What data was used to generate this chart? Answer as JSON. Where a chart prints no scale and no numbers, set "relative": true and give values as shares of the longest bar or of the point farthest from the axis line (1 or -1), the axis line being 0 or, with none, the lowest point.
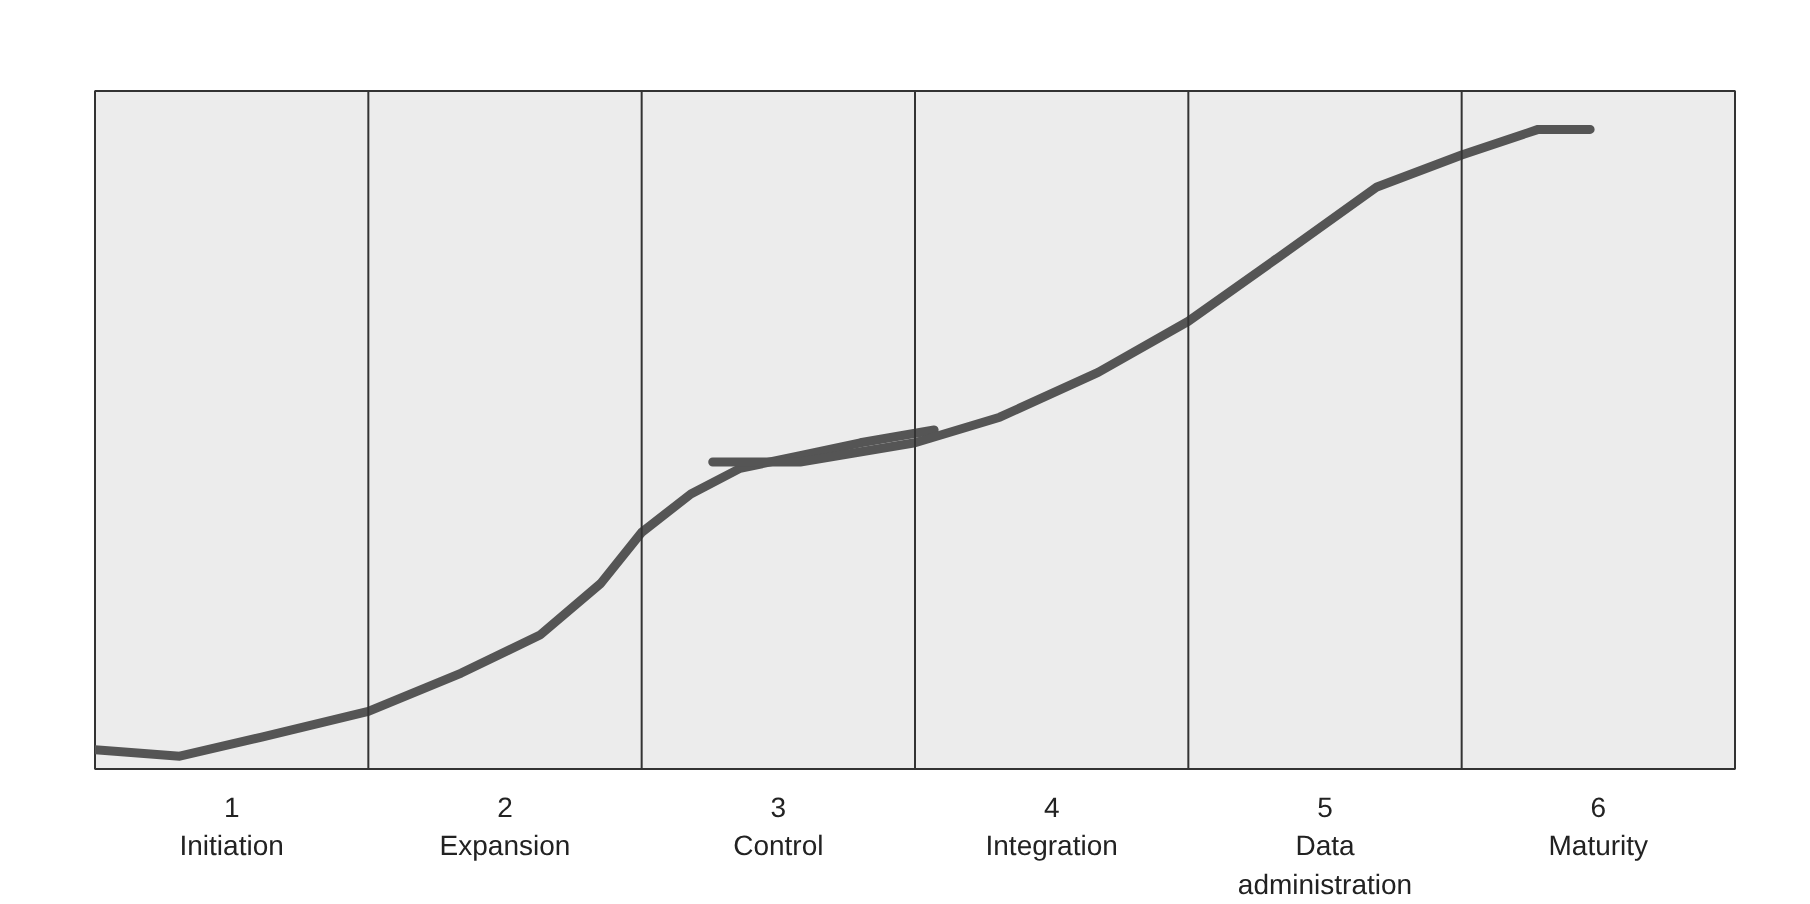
{
  "chart_data": {
    "type": "line",
    "relative": true,
    "xlim": [
      0,
      6
    ],
    "xticks": [
      {
        "value": 0.5,
        "label": "1\nInitiation"
      },
      {
        "value": 1.5,
        "label": "2\nExpansion"
      },
      {
        "value": 2.5,
        "label": "3\nControl"
      },
      {
        "value": 3.5,
        "label": "4\nIntegration"
      },
      {
        "value": 4.5,
        "label": "5\nData\nadministration"
      },
      {
        "value": 5.5,
        "label": "6\nMaturity"
      }
    ],
    "ref_lines": [
      {
        "axis": "x",
        "value": 1,
        "color": "#333333"
      },
      {
        "axis": "x",
        "value": 2,
        "color": "#333333"
      },
      {
        "axis": "x",
        "value": 3,
        "color": "#333333"
      },
      {
        "axis": "x",
        "value": 4,
        "color": "#333333"
      },
      {
        "axis": "x",
        "value": 5,
        "color": "#333333"
      }
    ],
    "series": [
      {
        "color": "#555555",
        "x": [
          0,
          0.31,
          0.61,
          1.0,
          1.34,
          1.63,
          1.85,
          2.0,
          2.18,
          2.36,
          2.58,
          2.8,
          3.07
        ],
        "values": [
          0.03,
          0.02,
          0.05,
          0.09,
          0.15,
          0.21,
          0.29,
          0.37,
          0.43,
          0.47,
          0.49,
          0.51,
          0.53
        ]
      },
      {
        "color": "#555555",
        "x": [
          2.26,
          2.58,
          3.0,
          3.31,
          3.67,
          4.0,
          4.33,
          4.69,
          5.0,
          5.28,
          5.47
        ],
        "values": [
          0.48,
          0.48,
          0.51,
          0.55,
          0.62,
          0.7,
          0.8,
          0.91,
          0.96,
          1.0,
          1.0
        ]
      }
    ]
  }
}
